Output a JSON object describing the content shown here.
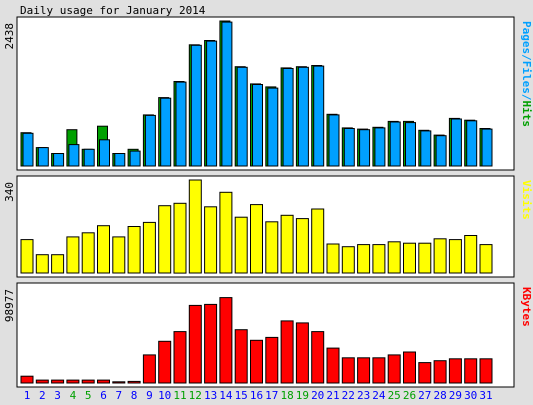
{
  "title": "Daily usage for January 2014",
  "colors": {
    "hits": "#00a000",
    "files": "#00a0ff",
    "visits": "#ffff00",
    "kbytes": "#ff0000",
    "weekday_label": "#0000ff",
    "weekend_label": "#00a000",
    "background": "#e0e0e0",
    "panel": "#ffffff"
  },
  "chart_data": [
    {
      "type": "bar",
      "panel": "hits",
      "categories": [
        "1",
        "2",
        "3",
        "4",
        "5",
        "6",
        "7",
        "8",
        "9",
        "10",
        "11",
        "12",
        "13",
        "14",
        "15",
        "16",
        "17",
        "18",
        "19",
        "20",
        "21",
        "22",
        "23",
        "24",
        "25",
        "26",
        "27",
        "28",
        "29",
        "30",
        "31"
      ],
      "weekend_days": [
        "4",
        "5",
        "11",
        "12",
        "18",
        "19",
        "25",
        "26"
      ],
      "ymax_label": "2438",
      "ylim": [
        0,
        2438
      ],
      "right_labels": [
        {
          "text": "Pages",
          "color_key": "files"
        },
        {
          "text": "/",
          "color_key": "files"
        },
        {
          "text": "Files",
          "color_key": "files"
        },
        {
          "text": "/",
          "color_key": "files"
        },
        {
          "text": "Hits",
          "color_key": "hits"
        }
      ],
      "series": [
        {
          "name": "Hits",
          "color_key": "hits",
          "values": [
            560,
            310,
            210,
            610,
            280,
            670,
            210,
            280,
            860,
            1150,
            1420,
            2038,
            2110,
            2438,
            1670,
            1380,
            1330,
            1650,
            1670,
            1690,
            870,
            640,
            620,
            650,
            750,
            750,
            600,
            520,
            800,
            770,
            630
          ]
        },
        {
          "name": "Files",
          "color_key": "files",
          "values": [
            550,
            310,
            210,
            360,
            280,
            440,
            210,
            250,
            850,
            1140,
            1410,
            2030,
            2100,
            2420,
            1660,
            1370,
            1310,
            1640,
            1660,
            1680,
            860,
            630,
            610,
            640,
            740,
            730,
            590,
            510,
            790,
            760,
            620
          ]
        }
      ]
    },
    {
      "type": "bar",
      "panel": "visits",
      "ymax_label": "340",
      "ylim": [
        0,
        340
      ],
      "right_labels": [
        {
          "text": "Visits",
          "color_key": "visits"
        }
      ],
      "series": [
        {
          "name": "Visits",
          "color_key": "visits",
          "values": [
            122,
            67,
            67,
            132,
            147,
            173,
            132,
            170,
            185,
            246,
            255,
            340,
            242,
            295,
            204,
            250,
            187,
            211,
            199,
            234,
            106,
            96,
            104,
            104,
            114,
            109,
            109,
            125,
            122,
            137,
            104
          ]
        }
      ]
    },
    {
      "type": "bar",
      "panel": "kbytes",
      "ymax_label": "98977",
      "ylim": [
        0,
        98977
      ],
      "right_labels": [
        {
          "text": "KBytes",
          "color_key": "kbytes"
        }
      ],
      "series": [
        {
          "name": "KBytes",
          "color_key": "kbytes",
          "values": [
            7000,
            3000,
            3000,
            3000,
            3000,
            3000,
            1200,
            1700,
            29000,
            43000,
            53000,
            80000,
            81000,
            88000,
            55000,
            44000,
            47000,
            64000,
            62000,
            53000,
            36000,
            26000,
            26000,
            26000,
            29000,
            32000,
            21000,
            23000,
            25000,
            25000,
            25000
          ]
        }
      ]
    }
  ]
}
